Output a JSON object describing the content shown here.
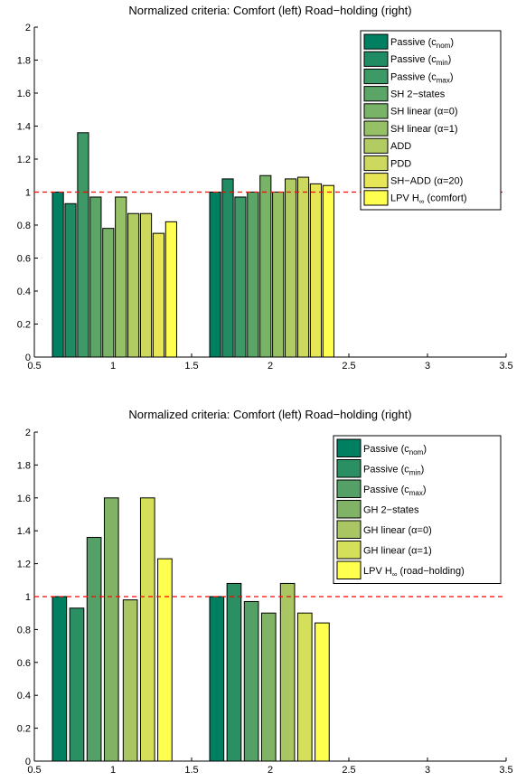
{
  "chart_data": [
    {
      "type": "bar",
      "title": "Normalized criteria: Comfort (left) Road−holding (right)",
      "xlim": [
        0.5,
        3.5
      ],
      "ylim": [
        0,
        2
      ],
      "xticks": [
        "0.5",
        "1",
        "1.5",
        "2",
        "2.5",
        "3",
        "3.5"
      ],
      "yticks": [
        "0",
        "0.2",
        "0.4",
        "0.6",
        "0.8",
        "1",
        "1.2",
        "1.4",
        "1.6",
        "1.8",
        "2"
      ],
      "reference_line": 1,
      "legend_position": "top-right",
      "bar_width": 0.07,
      "groups": [
        {
          "x": [
            0.65,
            0.73,
            0.81,
            0.89,
            0.97,
            1.05,
            1.13,
            1.21,
            1.29,
            1.37
          ],
          "values": [
            1.0,
            0.93,
            1.36,
            0.97,
            0.78,
            0.97,
            0.87,
            0.87,
            0.75,
            0.82
          ]
        },
        {
          "x": [
            1.65,
            1.73,
            1.81,
            1.89,
            1.97,
            2.05,
            2.13,
            2.21,
            2.29,
            2.37
          ],
          "values": [
            1.0,
            1.08,
            0.97,
            1.0,
            1.1,
            1.0,
            1.08,
            1.09,
            1.05,
            1.04
          ]
        }
      ],
      "series": [
        {
          "name": "Passive (c",
          "sub": "nom",
          "suffix": ")",
          "color": "#008060"
        },
        {
          "name": "Passive (c",
          "sub": "min",
          "suffix": ")",
          "color": "#1f8c63"
        },
        {
          "name": "Passive (c",
          "sub": "max",
          "suffix": ")",
          "color": "#3d9966"
        },
        {
          "name": "SH 2−states",
          "sub": "",
          "suffix": "",
          "color": "#5ba667"
        },
        {
          "name": "SH linear (α=0)",
          "sub": "",
          "suffix": "",
          "color": "#79b367"
        },
        {
          "name": "SH linear (α=1)",
          "sub": "",
          "suffix": "",
          "color": "#96c066"
        },
        {
          "name": "ADD",
          "sub": "",
          "suffix": "",
          "color": "#b2cc63"
        },
        {
          "name": "PDD",
          "sub": "",
          "suffix": "",
          "color": "#cdd95e"
        },
        {
          "name": "SH−ADD (α=20)",
          "sub": "",
          "suffix": "",
          "color": "#e6e656"
        },
        {
          "name": "LPV H",
          "sub": "∞",
          "suffix": " (comfort)",
          "color": "#ffff50"
        }
      ]
    },
    {
      "type": "bar",
      "title": "Normalized criteria: Comfort (left) Road−holding (right)",
      "xlim": [
        0.5,
        3.5
      ],
      "ylim": [
        0,
        2
      ],
      "xticks": [
        "0.5",
        "1",
        "1.5",
        "2",
        "2.5",
        "3",
        "3.5"
      ],
      "yticks": [
        "0",
        "0.2",
        "0.4",
        "0.6",
        "0.8",
        "1",
        "1.2",
        "1.4",
        "1.6",
        "1.8",
        "2"
      ],
      "reference_line": 1,
      "legend_position": "top-right",
      "bar_width": 0.09,
      "groups": [
        {
          "x": [
            0.66,
            0.77,
            0.88,
            0.99,
            1.11,
            1.22,
            1.33
          ],
          "values": [
            1.0,
            0.93,
            1.36,
            1.6,
            0.98,
            1.6,
            1.23
          ]
        },
        {
          "x": [
            1.66,
            1.77,
            1.88,
            1.99,
            2.11,
            2.22,
            2.33
          ],
          "values": [
            1.0,
            1.08,
            0.97,
            0.9,
            1.08,
            0.9,
            0.84
          ]
        }
      ],
      "series": [
        {
          "name": "Passive (c",
          "sub": "nom",
          "suffix": ")",
          "color": "#008060"
        },
        {
          "name": "Passive (c",
          "sub": "min",
          "suffix": ")",
          "color": "#2a9064"
        },
        {
          "name": "Passive (c",
          "sub": "max",
          "suffix": ")",
          "color": "#55a066"
        },
        {
          "name": "GH 2−states",
          "sub": "",
          "suffix": "",
          "color": "#80b366"
        },
        {
          "name": "GH linear (α=0)",
          "sub": "",
          "suffix": "",
          "color": "#aac663"
        },
        {
          "name": "GH linear (α=1)",
          "sub": "",
          "suffix": "",
          "color": "#d5e05a"
        },
        {
          "name": "LPV H",
          "sub": "∞",
          "suffix": " (road−holding)",
          "color": "#ffff50"
        }
      ]
    }
  ]
}
